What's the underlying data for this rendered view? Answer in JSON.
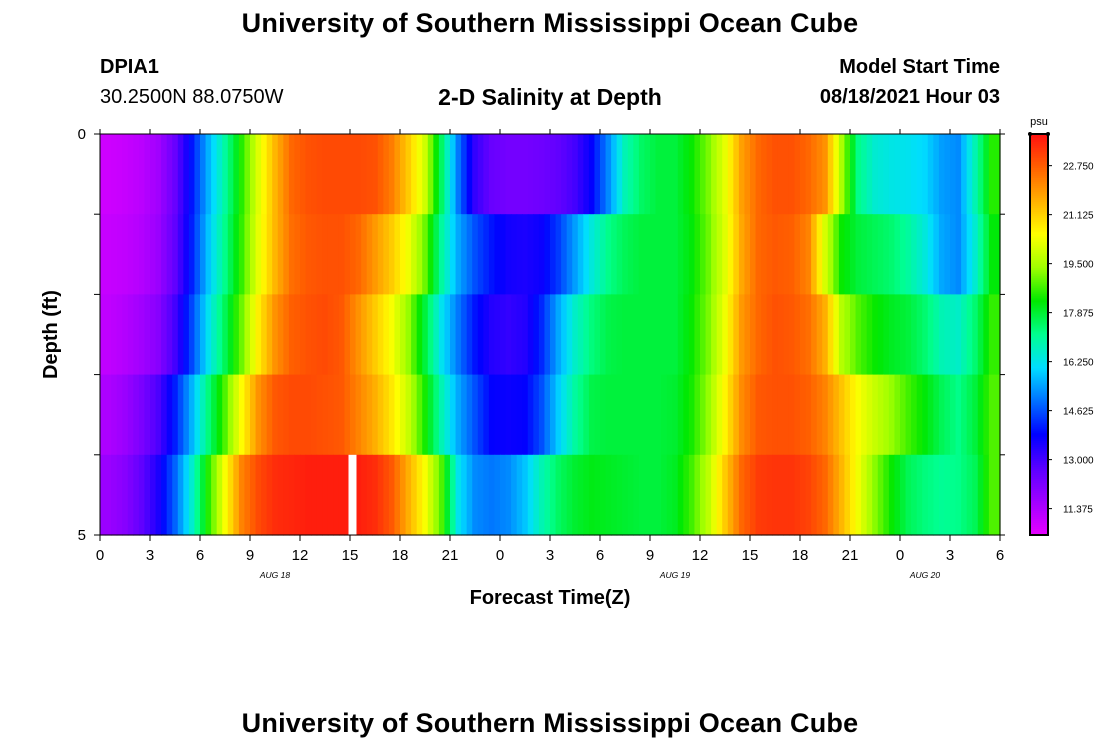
{
  "header": {
    "title": "University of Southern Mississippi Ocean Cube",
    "station_id": "DPIA1",
    "coordinates": "30.2500N  88.0750W",
    "subtitle": "2-D Salinity at Depth",
    "model_start_label": "Model Start Time",
    "model_start_value": "08/18/2021 Hour 03"
  },
  "footer": {
    "title": "University of Southern Mississippi Ocean Cube"
  },
  "chart_data": {
    "type": "heatmap",
    "title": "2-D Salinity at Depth",
    "xlabel": "Forecast Time(Z)",
    "ylabel": "Depth (ft)",
    "x_ticks": [
      "0",
      "3",
      "6",
      "9",
      "12",
      "15",
      "18",
      "21",
      "0",
      "3",
      "6",
      "9",
      "12",
      "15",
      "18",
      "21",
      "0",
      "3",
      "6"
    ],
    "date_labels": [
      {
        "label": "AUG 18",
        "after_tick_index": 3
      },
      {
        "label": "AUG 19",
        "after_tick_index": 11
      },
      {
        "label": "AUG 20",
        "after_tick_index": 16
      }
    ],
    "y_range": [
      0,
      5
    ],
    "y_tick_labels": [
      {
        "value": 0,
        "label": "0"
      },
      {
        "value": 1,
        "label": ""
      },
      {
        "value": 2,
        "label": ""
      },
      {
        "value": 3,
        "label": ""
      },
      {
        "value": 4,
        "label": ""
      },
      {
        "value": 5,
        "label": "5"
      }
    ],
    "hours": 54,
    "depth_layers": 5,
    "colorbar": {
      "unit": "psu",
      "min": 10.5,
      "max": 23.8,
      "tick_labels": [
        "22.750",
        "21.125",
        "19.500",
        "17.875",
        "16.250",
        "14.625",
        "13.000",
        "11.375"
      ],
      "tick_values": [
        22.75,
        21.125,
        19.5,
        17.875,
        16.25,
        14.625,
        13.0,
        11.375
      ],
      "colors": [
        "#e600ff",
        "#a000ff",
        "#5a00ff",
        "#0000ff",
        "#0070ff",
        "#00ddff",
        "#00ff90",
        "#00e800",
        "#a0ff00",
        "#ffff00",
        "#ffb000",
        "#ff6000",
        "#ff1010"
      ]
    },
    "missing_value_marker": {
      "hour": 15,
      "depth_layer": 4
    },
    "values": [
      [
        10.9,
        11.0,
        11.2,
        11.6,
        12.5,
        14.0,
        15.6,
        17.0,
        18.5,
        20.1,
        21.5,
        22.6,
        22.9,
        23.0,
        23.0,
        23.0,
        22.9,
        22.3,
        21.2,
        19.9,
        17.5,
        15.0,
        13.2,
        12.5,
        12.3,
        12.3,
        12.4,
        12.6,
        13.0,
        13.8,
        15.2,
        16.8,
        17.5,
        17.8,
        17.8,
        18.3,
        19.1,
        20.2,
        21.8,
        22.6,
        22.9,
        22.9,
        22.6,
        22.0,
        19.5,
        17.2,
        16.5,
        16.3,
        16.2,
        16.0,
        15.4,
        15.2,
        16.8,
        18.5
      ],
      [
        11.0,
        11.1,
        11.3,
        11.7,
        12.6,
        14.1,
        15.8,
        17.2,
        18.6,
        20.2,
        21.5,
        22.5,
        22.8,
        22.9,
        22.9,
        22.6,
        21.9,
        21.2,
        20.3,
        19.0,
        17.0,
        15.5,
        14.6,
        14.0,
        13.6,
        13.5,
        13.7,
        14.4,
        15.4,
        16.4,
        17.2,
        17.6,
        17.8,
        17.8,
        17.8,
        18.2,
        19.0,
        20.1,
        21.7,
        22.6,
        22.8,
        22.7,
        22.2,
        20.0,
        18.3,
        17.8,
        17.6,
        17.4,
        17.0,
        16.4,
        15.5,
        15.2,
        16.5,
        18.2
      ],
      [
        11.1,
        11.3,
        11.6,
        12.0,
        13.0,
        14.5,
        16.2,
        17.6,
        19.0,
        20.7,
        22.0,
        22.7,
        22.9,
        23.0,
        22.8,
        22.0,
        21.2,
        20.4,
        19.3,
        17.8,
        16.2,
        15.0,
        14.0,
        13.4,
        13.2,
        13.4,
        14.2,
        15.5,
        16.6,
        17.3,
        17.7,
        17.8,
        17.8,
        17.8,
        17.8,
        18.3,
        19.1,
        20.3,
        21.9,
        22.6,
        22.9,
        22.8,
        22.5,
        21.6,
        19.6,
        18.8,
        18.3,
        18.0,
        17.8,
        17.4,
        16.8,
        16.6,
        17.4,
        18.6
      ],
      [
        11.4,
        11.7,
        12.2,
        12.9,
        14.1,
        15.6,
        17.3,
        18.8,
        20.5,
        22.0,
        22.8,
        23.0,
        23.0,
        22.9,
        22.8,
        22.2,
        21.6,
        20.8,
        19.8,
        18.4,
        16.8,
        15.5,
        14.6,
        13.8,
        13.7,
        13.8,
        14.6,
        15.9,
        17.0,
        17.7,
        17.8,
        17.8,
        17.8,
        17.8,
        17.9,
        18.4,
        19.3,
        20.6,
        22.1,
        22.8,
        22.9,
        22.9,
        22.7,
        22.2,
        21.3,
        20.4,
        19.8,
        19.3,
        18.7,
        18.2,
        17.6,
        17.2,
        17.8,
        18.8
      ],
      [
        11.7,
        12.0,
        12.6,
        13.5,
        14.8,
        16.5,
        18.5,
        20.4,
        22.2,
        23.0,
        23.4,
        23.5,
        23.6,
        23.6,
        23.6,
        23.6,
        23.4,
        22.8,
        21.6,
        20.4,
        18.8,
        16.2,
        15.2,
        15.0,
        15.2,
        15.8,
        16.8,
        17.5,
        17.9,
        18.1,
        18.0,
        17.9,
        17.8,
        17.8,
        18.0,
        18.7,
        19.7,
        21.2,
        22.6,
        23.2,
        23.3,
        23.3,
        23.1,
        22.6,
        21.5,
        20.3,
        19.2,
        18.3,
        17.6,
        17.3,
        17.1,
        17.2,
        17.6,
        18.8
      ]
    ]
  }
}
